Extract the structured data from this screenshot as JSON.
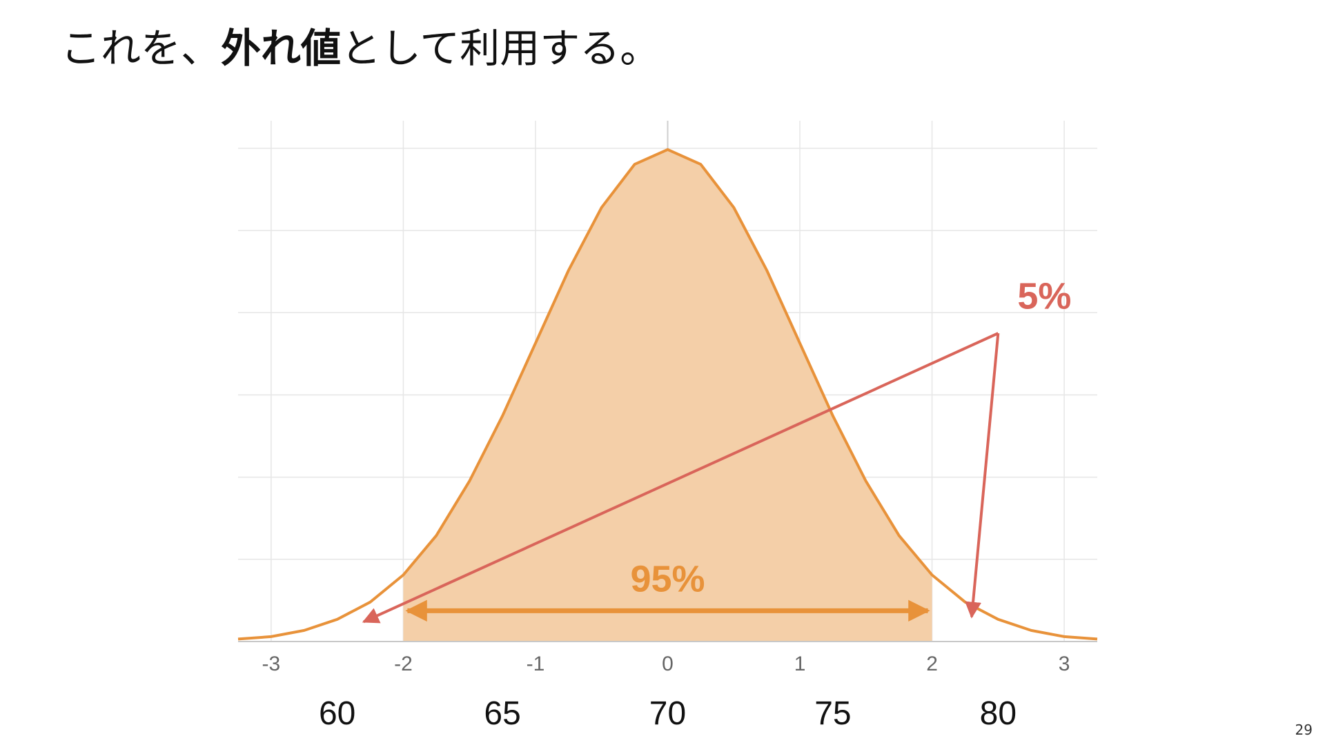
{
  "slide": {
    "title_pre": "これを、",
    "title_emph": "外れ値",
    "title_post": "として利用する。",
    "page_number": "29"
  },
  "colors": {
    "curve": "#E8923A",
    "fill": "#F4CFA8",
    "grid": "#E6E6E6",
    "axis": "#C8C8C8",
    "annotation_red": "#D9655A",
    "annotation_orange": "#E8923A"
  },
  "chart_data": {
    "type": "area",
    "title": "",
    "xlabel": "",
    "ylabel": "",
    "grid": true,
    "xlim": [
      -3.25,
      3.25
    ],
    "ylim": [
      0,
      0.4
    ],
    "x_ticks": [
      -3,
      -2,
      -1,
      0,
      1,
      2,
      3
    ],
    "x_tick_labels": [
      "-3",
      "-2",
      "-1",
      "0",
      "1",
      "2",
      "3"
    ],
    "secondary_ticks": [
      -2.5,
      -1.25,
      0,
      1.25,
      2.5
    ],
    "secondary_tick_labels": [
      "60",
      "65",
      "70",
      "75",
      "80"
    ],
    "y_grid": [
      0,
      0.0667,
      0.1333,
      0.2,
      0.2667,
      0.3333,
      0.4
    ],
    "series": [
      {
        "x": [
          -3.25,
          -3.0,
          -2.75,
          -2.5,
          -2.25,
          -2.0,
          -1.75,
          -1.5,
          -1.25,
          -1.0,
          -0.75,
          -0.5,
          -0.25,
          0,
          0.25,
          0.5,
          0.75,
          1.0,
          1.25,
          1.5,
          1.75,
          2.0,
          2.25,
          2.5,
          2.75,
          3.0,
          3.25
        ],
        "y": [
          0.002,
          0.004,
          0.009,
          0.018,
          0.032,
          0.054,
          0.086,
          0.13,
          0.183,
          0.242,
          0.301,
          0.352,
          0.387,
          0.399,
          0.387,
          0.352,
          0.301,
          0.242,
          0.183,
          0.13,
          0.086,
          0.054,
          0.032,
          0.018,
          0.009,
          0.004,
          0.002
        ]
      }
    ],
    "shaded_range": [
      -2,
      2
    ],
    "annotations": {
      "center_label": "95%",
      "center_arrow": [
        -2,
        2
      ],
      "center_arrow_y": 0.025,
      "tail_label": "5%",
      "tail_label_x": 2.85,
      "tail_label_y": 0.27,
      "tail_pointer_origin": [
        2.5,
        0.25
      ],
      "tail_pointer_targets": [
        [
          -2.3,
          0.016
        ],
        [
          2.3,
          0.02
        ]
      ]
    }
  }
}
